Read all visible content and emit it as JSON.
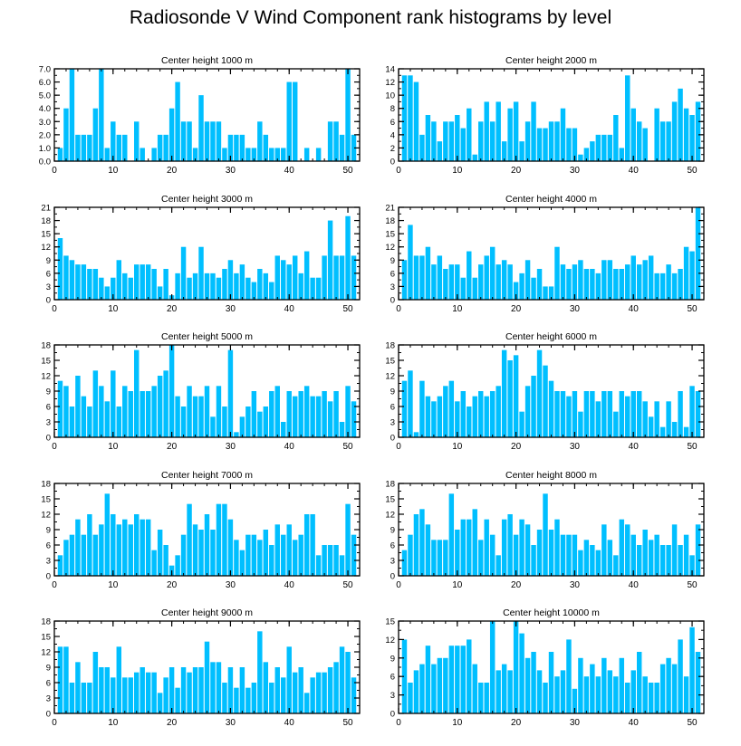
{
  "title": "Radiosonde V Wind Component rank histograms by level",
  "colors": {
    "bar": "#00bfff",
    "axis": "#000000"
  },
  "chart_data": [
    {
      "type": "bar",
      "title": "Center height 1000 m",
      "xlim": [
        0,
        52
      ],
      "ylim": [
        0,
        7.0
      ],
      "xticks": [
        0,
        10,
        20,
        30,
        40,
        50
      ],
      "yticks": [
        0,
        1,
        2,
        3,
        4,
        5,
        6,
        7
      ],
      "ytick_labels": [
        "0.0",
        "1.0",
        "2.0",
        "3.0",
        "4.0",
        "5.0",
        "6.0",
        "7.0"
      ],
      "x": [
        1,
        2,
        3,
        4,
        5,
        6,
        7,
        8,
        9,
        10,
        11,
        12,
        13,
        14,
        15,
        16,
        17,
        18,
        19,
        20,
        21,
        22,
        23,
        24,
        25,
        26,
        27,
        28,
        29,
        30,
        31,
        32,
        33,
        34,
        35,
        36,
        37,
        38,
        39,
        40,
        41,
        42,
        43,
        44,
        45,
        46,
        47,
        48,
        49,
        50,
        51
      ],
      "values": [
        1,
        4,
        7,
        2,
        2,
        2,
        4,
        7,
        1,
        3,
        2,
        2,
        0,
        3,
        1,
        0,
        1,
        2,
        2,
        4,
        6,
        3,
        3,
        1,
        5,
        3,
        3,
        3,
        1,
        2,
        2,
        2,
        1,
        1,
        3,
        2,
        1,
        1,
        1,
        6,
        6,
        0,
        1,
        0,
        1,
        0,
        3,
        3,
        2,
        7,
        2
      ]
    },
    {
      "type": "bar",
      "title": "Center height 2000 m",
      "xlim": [
        0,
        52
      ],
      "ylim": [
        0,
        14
      ],
      "xticks": [
        0,
        10,
        20,
        30,
        40,
        50
      ],
      "yticks": [
        0,
        2,
        4,
        6,
        8,
        10,
        12,
        14
      ],
      "ytick_labels": [
        "0",
        "2",
        "4",
        "6",
        "8",
        "10",
        "12",
        "14"
      ],
      "x": [
        1,
        2,
        3,
        4,
        5,
        6,
        7,
        8,
        9,
        10,
        11,
        12,
        13,
        14,
        15,
        16,
        17,
        18,
        19,
        20,
        21,
        22,
        23,
        24,
        25,
        26,
        27,
        28,
        29,
        30,
        31,
        32,
        33,
        34,
        35,
        36,
        37,
        38,
        39,
        40,
        41,
        42,
        43,
        44,
        45,
        46,
        47,
        48,
        49,
        50,
        51
      ],
      "values": [
        13,
        13,
        12,
        4,
        7,
        6,
        3,
        6,
        6,
        7,
        5,
        8,
        1,
        6,
        9,
        6,
        9,
        3,
        8,
        9,
        3,
        6,
        9,
        5,
        5,
        6,
        6,
        8,
        5,
        5,
        1,
        2,
        3,
        4,
        4,
        4,
        7,
        2,
        13,
        8,
        6,
        5,
        0,
        8,
        6,
        6,
        9,
        11,
        8,
        7,
        9
      ]
    },
    {
      "type": "bar",
      "title": "Center height 3000 m",
      "xlim": [
        0,
        52
      ],
      "ylim": [
        0,
        21
      ],
      "xticks": [
        0,
        10,
        20,
        30,
        40,
        50
      ],
      "yticks": [
        0,
        3,
        6,
        9,
        12,
        15,
        18,
        21
      ],
      "ytick_labels": [
        "0",
        "3",
        "6",
        "9",
        "12",
        "15",
        "18",
        "21"
      ],
      "x": [
        1,
        2,
        3,
        4,
        5,
        6,
        7,
        8,
        9,
        10,
        11,
        12,
        13,
        14,
        15,
        16,
        17,
        18,
        19,
        20,
        21,
        22,
        23,
        24,
        25,
        26,
        27,
        28,
        29,
        30,
        31,
        32,
        33,
        34,
        35,
        36,
        37,
        38,
        39,
        40,
        41,
        42,
        43,
        44,
        45,
        46,
        47,
        48,
        49,
        50,
        51
      ],
      "values": [
        14,
        10,
        9,
        8,
        8,
        7,
        7,
        5,
        3,
        5,
        9,
        6,
        5,
        8,
        8,
        8,
        7,
        3,
        7,
        1,
        6,
        12,
        5,
        6,
        12,
        6,
        6,
        5,
        7,
        9,
        6,
        8,
        5,
        4,
        7,
        6,
        4,
        10,
        9,
        8,
        10,
        6,
        11,
        5,
        5,
        10,
        18,
        10,
        10,
        19,
        10
      ]
    },
    {
      "type": "bar",
      "title": "Center height 4000 m",
      "xlim": [
        0,
        52
      ],
      "ylim": [
        0,
        21
      ],
      "xticks": [
        0,
        10,
        20,
        30,
        40,
        50
      ],
      "yticks": [
        0,
        3,
        6,
        9,
        12,
        15,
        18,
        21
      ],
      "ytick_labels": [
        "0",
        "3",
        "6",
        "9",
        "12",
        "15",
        "18",
        "21"
      ],
      "x": [
        1,
        2,
        3,
        4,
        5,
        6,
        7,
        8,
        9,
        10,
        11,
        12,
        13,
        14,
        15,
        16,
        17,
        18,
        19,
        20,
        21,
        22,
        23,
        24,
        25,
        26,
        27,
        28,
        29,
        30,
        31,
        32,
        33,
        34,
        35,
        36,
        37,
        38,
        39,
        40,
        41,
        42,
        43,
        44,
        45,
        46,
        47,
        48,
        49,
        50,
        51
      ],
      "values": [
        9,
        17,
        10,
        10,
        12,
        8,
        10,
        7,
        8,
        8,
        5,
        11,
        5,
        8,
        10,
        12,
        8,
        9,
        8,
        4,
        6,
        9,
        5,
        7,
        3,
        3,
        12,
        8,
        7,
        8,
        9,
        7,
        7,
        6,
        9,
        9,
        7,
        7,
        8,
        10,
        8,
        9,
        10,
        6,
        6,
        8,
        6,
        7,
        12,
        11,
        21
      ]
    },
    {
      "type": "bar",
      "title": "Center height 5000 m",
      "xlim": [
        0,
        52
      ],
      "ylim": [
        0,
        18
      ],
      "xticks": [
        0,
        10,
        20,
        30,
        40,
        50
      ],
      "yticks": [
        0,
        3,
        6,
        9,
        12,
        15,
        18
      ],
      "ytick_labels": [
        "0",
        "3",
        "6",
        "9",
        "12",
        "15",
        "18"
      ],
      "x": [
        1,
        2,
        3,
        4,
        5,
        6,
        7,
        8,
        9,
        10,
        11,
        12,
        13,
        14,
        15,
        16,
        17,
        18,
        19,
        20,
        21,
        22,
        23,
        24,
        25,
        26,
        27,
        28,
        29,
        30,
        31,
        32,
        33,
        34,
        35,
        36,
        37,
        38,
        39,
        40,
        41,
        42,
        43,
        44,
        45,
        46,
        47,
        48,
        49,
        50,
        51
      ],
      "values": [
        11,
        10,
        6,
        12,
        8,
        6,
        13,
        10,
        7,
        13,
        6,
        10,
        9,
        17,
        9,
        9,
        10,
        12,
        13,
        18,
        8,
        6,
        10,
        8,
        8,
        10,
        4,
        10,
        6,
        17,
        1,
        4,
        6,
        9,
        5,
        6,
        9,
        10,
        3,
        9,
        8,
        9,
        10,
        8,
        8,
        9,
        7,
        9,
        3,
        10,
        7
      ]
    },
    {
      "type": "bar",
      "title": "Center height 6000 m",
      "xlim": [
        0,
        52
      ],
      "ylim": [
        0,
        18
      ],
      "xticks": [
        0,
        10,
        20,
        30,
        40,
        50
      ],
      "yticks": [
        0,
        3,
        6,
        9,
        12,
        15,
        18
      ],
      "ytick_labels": [
        "0",
        "3",
        "6",
        "9",
        "12",
        "15",
        "18"
      ],
      "x": [
        1,
        2,
        3,
        4,
        5,
        6,
        7,
        8,
        9,
        10,
        11,
        12,
        13,
        14,
        15,
        16,
        17,
        18,
        19,
        20,
        21,
        22,
        23,
        24,
        25,
        26,
        27,
        28,
        29,
        30,
        31,
        32,
        33,
        34,
        35,
        36,
        37,
        38,
        39,
        40,
        41,
        42,
        43,
        44,
        45,
        46,
        47,
        48,
        49,
        50,
        51
      ],
      "values": [
        11,
        13,
        1,
        11,
        8,
        7,
        8,
        10,
        11,
        7,
        9,
        6,
        8,
        9,
        8,
        9,
        10,
        17,
        15,
        16,
        5,
        10,
        12,
        17,
        14,
        11,
        9,
        9,
        8,
        9,
        5,
        9,
        9,
        7,
        9,
        9,
        5,
        9,
        8,
        9,
        9,
        7,
        4,
        7,
        2,
        7,
        3,
        9,
        2,
        10,
        9
      ]
    },
    {
      "type": "bar",
      "title": "Center height 7000 m",
      "xlim": [
        0,
        52
      ],
      "ylim": [
        0,
        18
      ],
      "xticks": [
        0,
        10,
        20,
        30,
        40,
        50
      ],
      "yticks": [
        0,
        3,
        6,
        9,
        12,
        15,
        18
      ],
      "ytick_labels": [
        "0",
        "3",
        "6",
        "9",
        "12",
        "15",
        "18"
      ],
      "x": [
        1,
        2,
        3,
        4,
        5,
        6,
        7,
        8,
        9,
        10,
        11,
        12,
        13,
        14,
        15,
        16,
        17,
        18,
        19,
        20,
        21,
        22,
        23,
        24,
        25,
        26,
        27,
        28,
        29,
        30,
        31,
        32,
        33,
        34,
        35,
        36,
        37,
        38,
        39,
        40,
        41,
        42,
        43,
        44,
        45,
        46,
        47,
        48,
        49,
        50,
        51
      ],
      "values": [
        4,
        7,
        8,
        11,
        8,
        12,
        8,
        10,
        16,
        12,
        10,
        11,
        10,
        12,
        11,
        11,
        5,
        9,
        6,
        2,
        4,
        8,
        14,
        10,
        9,
        12,
        9,
        14,
        14,
        11,
        7,
        5,
        8,
        8,
        7,
        9,
        6,
        10,
        8,
        10,
        7,
        8,
        12,
        12,
        4,
        6,
        6,
        6,
        4,
        14,
        8
      ]
    },
    {
      "type": "bar",
      "title": "Center height 8000 m",
      "xlim": [
        0,
        52
      ],
      "ylim": [
        0,
        18
      ],
      "xticks": [
        0,
        10,
        20,
        30,
        40,
        50
      ],
      "yticks": [
        0,
        3,
        6,
        9,
        12,
        15,
        18
      ],
      "ytick_labels": [
        "0",
        "3",
        "6",
        "9",
        "12",
        "15",
        "18"
      ],
      "x": [
        1,
        2,
        3,
        4,
        5,
        6,
        7,
        8,
        9,
        10,
        11,
        12,
        13,
        14,
        15,
        16,
        17,
        18,
        19,
        20,
        21,
        22,
        23,
        24,
        25,
        26,
        27,
        28,
        29,
        30,
        31,
        32,
        33,
        34,
        35,
        36,
        37,
        38,
        39,
        40,
        41,
        42,
        43,
        44,
        45,
        46,
        47,
        48,
        49,
        50,
        51
      ],
      "values": [
        5,
        8,
        12,
        13,
        10,
        7,
        7,
        7,
        16,
        9,
        11,
        11,
        13,
        7,
        11,
        8,
        4,
        11,
        12,
        8,
        11,
        10,
        6,
        9,
        16,
        9,
        11,
        8,
        8,
        8,
        5,
        7,
        6,
        5,
        10,
        7,
        4,
        11,
        10,
        8,
        6,
        9,
        7,
        8,
        6,
        6,
        10,
        6,
        8,
        4,
        10
      ]
    },
    {
      "type": "bar",
      "title": "Center height 9000 m",
      "xlim": [
        0,
        52
      ],
      "ylim": [
        0,
        18
      ],
      "xticks": [
        0,
        10,
        20,
        30,
        40,
        50
      ],
      "yticks": [
        0,
        3,
        6,
        9,
        12,
        15,
        18
      ],
      "ytick_labels": [
        "0",
        "3",
        "6",
        "9",
        "12",
        "15",
        "18"
      ],
      "x": [
        1,
        2,
        3,
        4,
        5,
        6,
        7,
        8,
        9,
        10,
        11,
        12,
        13,
        14,
        15,
        16,
        17,
        18,
        19,
        20,
        21,
        22,
        23,
        24,
        25,
        26,
        27,
        28,
        29,
        30,
        31,
        32,
        33,
        34,
        35,
        36,
        37,
        38,
        39,
        40,
        41,
        42,
        43,
        44,
        45,
        46,
        47,
        48,
        49,
        50,
        51
      ],
      "values": [
        13,
        13,
        6,
        10,
        6,
        6,
        12,
        9,
        9,
        7,
        13,
        7,
        7,
        8,
        9,
        8,
        8,
        4,
        7,
        9,
        5,
        9,
        8,
        9,
        9,
        14,
        10,
        10,
        6,
        9,
        5,
        9,
        5,
        6,
        16,
        10,
        6,
        9,
        7,
        13,
        8,
        9,
        4,
        7,
        8,
        8,
        9,
        10,
        13,
        12,
        7
      ]
    },
    {
      "type": "bar",
      "title": "Center height 10000 m",
      "xlim": [
        0,
        52
      ],
      "ylim": [
        0,
        15
      ],
      "xticks": [
        0,
        10,
        20,
        30,
        40,
        50
      ],
      "yticks": [
        0,
        3,
        6,
        9,
        12,
        15
      ],
      "ytick_labels": [
        "0",
        "3",
        "6",
        "9",
        "12",
        "15"
      ],
      "x": [
        1,
        2,
        3,
        4,
        5,
        6,
        7,
        8,
        9,
        10,
        11,
        12,
        13,
        14,
        15,
        16,
        17,
        18,
        19,
        20,
        21,
        22,
        23,
        24,
        25,
        26,
        27,
        28,
        29,
        30,
        31,
        32,
        33,
        34,
        35,
        36,
        37,
        38,
        39,
        40,
        41,
        42,
        43,
        44,
        45,
        46,
        47,
        48,
        49,
        50,
        51
      ],
      "values": [
        12,
        5,
        7,
        8,
        11,
        8,
        9,
        9,
        11,
        11,
        11,
        12,
        8,
        5,
        5,
        15,
        7,
        8,
        7,
        15,
        13,
        9,
        10,
        7,
        5,
        10,
        6,
        7,
        12,
        4,
        9,
        6,
        8,
        6,
        9,
        7,
        6,
        9,
        5,
        7,
        10,
        6,
        5,
        5,
        8,
        9,
        8,
        12,
        6,
        14,
        10
      ]
    }
  ]
}
